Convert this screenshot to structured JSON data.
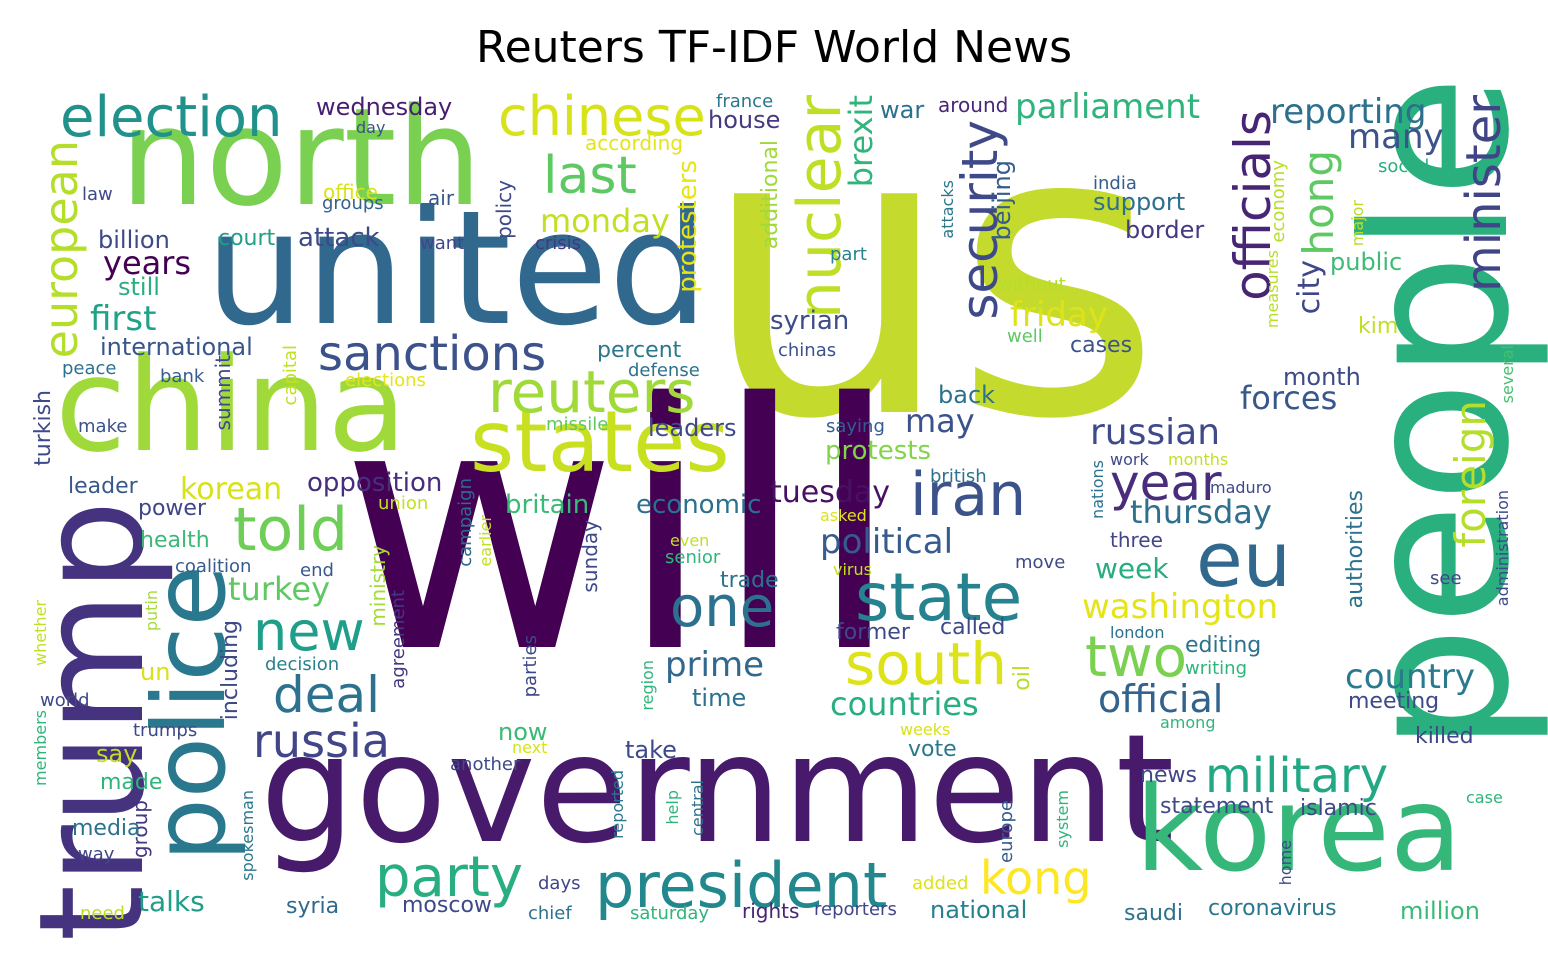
{
  "title": "Reuters TF-IDF World News",
  "palette": [
    "#440154",
    "#482878",
    "#3e4989",
    "#31688e",
    "#26828e",
    "#1f9e89",
    "#35b779",
    "#6ece58",
    "#b5de2b",
    "#fde725"
  ],
  "words": [
    {
      "text": "us",
      "color": "#c4db2d"
    },
    {
      "text": "will",
      "color": "#440154"
    },
    {
      "text": "government",
      "color": "#481a6c"
    },
    {
      "text": "united",
      "color": "#31688e"
    },
    {
      "text": "north",
      "color": "#7ad151"
    },
    {
      "text": "china",
      "color": "#9fda3a"
    },
    {
      "text": "people",
      "color": "#2ab07f"
    },
    {
      "text": "korea",
      "color": "#35b779"
    },
    {
      "text": "trump",
      "color": "#46337f"
    },
    {
      "text": "states",
      "color": "#c8e020"
    },
    {
      "text": "police",
      "color": "#2a788e"
    },
    {
      "text": "president",
      "color": "#23888e"
    },
    {
      "text": "sanctions",
      "color": "#3b528b"
    },
    {
      "text": "reuters",
      "color": "#a0da39"
    },
    {
      "text": "election",
      "color": "#21918c"
    },
    {
      "text": "chinese",
      "color": "#d8e219"
    },
    {
      "text": "last",
      "color": "#5ec962"
    },
    {
      "text": "nuclear",
      "color": "#bddf26"
    },
    {
      "text": "security",
      "color": "#3e4989"
    },
    {
      "text": "officials",
      "color": "#482475"
    },
    {
      "text": "minister",
      "color": "#414487"
    },
    {
      "text": "hong",
      "color": "#5ec962"
    },
    {
      "text": "eu",
      "color": "#31688e"
    },
    {
      "text": "state",
      "color": "#26828e"
    },
    {
      "text": "iran",
      "color": "#3b528b"
    },
    {
      "text": "told",
      "color": "#6ece58"
    },
    {
      "text": "new",
      "color": "#1f9e89"
    },
    {
      "text": "deal",
      "color": "#2c728e"
    },
    {
      "text": "russia",
      "color": "#404688"
    },
    {
      "text": "one",
      "color": "#2c728e"
    },
    {
      "text": "south",
      "color": "#dde318"
    },
    {
      "text": "two",
      "color": "#7ad151"
    },
    {
      "text": "military",
      "color": "#22a884"
    },
    {
      "text": "party",
      "color": "#28ae80"
    },
    {
      "text": "kong",
      "color": "#fde725"
    },
    {
      "text": "european",
      "color": "#b5de2b"
    },
    {
      "text": "foreign",
      "color": "#b5de2b"
    },
    {
      "text": "year",
      "color": "#472d7b"
    },
    {
      "text": "reporting",
      "color": "#2d708e"
    },
    {
      "text": "parliament",
      "color": "#2fb47c"
    },
    {
      "text": "many",
      "color": "#3b528b"
    },
    {
      "text": "official",
      "color": "#33638d"
    },
    {
      "text": "washington",
      "color": "#e5e419"
    },
    {
      "text": "political",
      "color": "#375b8d"
    },
    {
      "text": "russian",
      "color": "#3e4a89"
    },
    {
      "text": "thursday",
      "color": "#2e6f8e"
    },
    {
      "text": "forces",
      "color": "#38588c"
    },
    {
      "text": "brexit",
      "color": "#2fb47c"
    },
    {
      "text": "friday",
      "color": "#dde318"
    },
    {
      "text": "beijing",
      "color": "#365c8d"
    },
    {
      "text": "city",
      "color": "#3f4788"
    },
    {
      "text": "country",
      "color": "#297a8e"
    },
    {
      "text": "monday",
      "color": "#c2df23"
    },
    {
      "text": "years",
      "color": "#440154"
    },
    {
      "text": "first",
      "color": "#1fa287"
    },
    {
      "text": "korean",
      "color": "#d8e219"
    },
    {
      "text": "turkey",
      "color": "#5ec962"
    },
    {
      "text": "prime",
      "color": "#31688e"
    },
    {
      "text": "countries",
      "color": "#29af7f"
    },
    {
      "text": "tuesday",
      "color": "#471063"
    },
    {
      "text": "opposition",
      "color": "#472f7d"
    },
    {
      "text": "protesters",
      "color": "#e7e419"
    },
    {
      "text": "additional",
      "color": "#9fda3a"
    },
    {
      "text": "week",
      "color": "#27ad81"
    },
    {
      "text": "month",
      "color": "#3e4989"
    },
    {
      "text": "public",
      "color": "#3dbc74"
    },
    {
      "text": "support",
      "color": "#2d708e"
    },
    {
      "text": "border",
      "color": "#443a83"
    },
    {
      "text": "syrian",
      "color": "#3e4c8a"
    },
    {
      "text": "may",
      "color": "#3b528b"
    },
    {
      "text": "protests",
      "color": "#84d44b"
    },
    {
      "text": "britain",
      "color": "#3aba76"
    },
    {
      "text": "economic",
      "color": "#2d708e"
    },
    {
      "text": "international",
      "color": "#39568c"
    },
    {
      "text": "court",
      "color": "#1fa088"
    },
    {
      "text": "attack",
      "color": "#3e4989"
    },
    {
      "text": "billion",
      "color": "#3e4989"
    },
    {
      "text": "still",
      "color": "#29af7f"
    },
    {
      "text": "wednesday",
      "color": "#481f70"
    },
    {
      "text": "house",
      "color": "#443983"
    },
    {
      "text": "war",
      "color": "#2c728e"
    },
    {
      "text": "around",
      "color": "#482677"
    },
    {
      "text": "france",
      "color": "#2a788e"
    },
    {
      "text": "according",
      "color": "#e5e419"
    },
    {
      "text": "office",
      "color": "#d8e219"
    },
    {
      "text": "groups",
      "color": "#33638d"
    },
    {
      "text": "air",
      "color": "#39568c"
    },
    {
      "text": "policy",
      "color": "#3e4989"
    },
    {
      "text": "crisis",
      "color": "#453781"
    },
    {
      "text": "want",
      "color": "#404688"
    },
    {
      "text": "part",
      "color": "#26828e"
    },
    {
      "text": "law",
      "color": "#3e4989"
    },
    {
      "text": "day",
      "color": "#3b528b"
    },
    {
      "text": "india",
      "color": "#365c8d"
    },
    {
      "text": "social",
      "color": "#29af7f"
    },
    {
      "text": "major",
      "color": "#b8de29"
    },
    {
      "text": "economy",
      "color": "#b8de29"
    },
    {
      "text": "measures",
      "color": "#b8de29"
    },
    {
      "text": "attacks",
      "color": "#2a788e"
    },
    {
      "text": "without",
      "color": "#b5de2b"
    },
    {
      "text": "well",
      "color": "#5ec962"
    },
    {
      "text": "cases",
      "color": "#3b528b"
    },
    {
      "text": "chinas",
      "color": "#3b528b"
    },
    {
      "text": "kim",
      "color": "#c2df23"
    },
    {
      "text": "several",
      "color": "#46c06f"
    },
    {
      "text": "back",
      "color": "#2c728e"
    },
    {
      "text": "saying",
      "color": "#365c8d"
    },
    {
      "text": "leaders",
      "color": "#3e4989"
    },
    {
      "text": "missile",
      "color": "#5ec962"
    },
    {
      "text": "summit",
      "color": "#3e4989"
    },
    {
      "text": "capital",
      "color": "#c2df23"
    },
    {
      "text": "elections",
      "color": "#e5e419"
    },
    {
      "text": "percent",
      "color": "#2a788e"
    },
    {
      "text": "defense",
      "color": "#2c728e"
    },
    {
      "text": "peace",
      "color": "#2c728e"
    },
    {
      "text": "bank",
      "color": "#365c8d"
    },
    {
      "text": "turkish",
      "color": "#3e4989"
    },
    {
      "text": "make",
      "color": "#3b528b"
    },
    {
      "text": "leader",
      "color": "#38588c"
    },
    {
      "text": "power",
      "color": "#404688"
    },
    {
      "text": "health",
      "color": "#3aba76"
    },
    {
      "text": "coalition",
      "color": "#365c8d"
    },
    {
      "text": "end",
      "color": "#38588c"
    },
    {
      "text": "putin",
      "color": "#a5db36"
    },
    {
      "text": "ministry",
      "color": "#a5db36"
    },
    {
      "text": "agreement",
      "color": "#453781"
    },
    {
      "text": "decision",
      "color": "#26828e"
    },
    {
      "text": "whether",
      "color": "#c2df23"
    },
    {
      "text": "un",
      "color": "#d8e219"
    },
    {
      "text": "world",
      "color": "#3e4989"
    },
    {
      "text": "trumps",
      "color": "#3e4989"
    },
    {
      "text": "members",
      "color": "#2fb47c"
    },
    {
      "text": "say",
      "color": "#c2df23"
    },
    {
      "text": "made",
      "color": "#2fb47c"
    },
    {
      "text": "group",
      "color": "#453781"
    },
    {
      "text": "media",
      "color": "#2c728e"
    },
    {
      "text": "way",
      "color": "#404688"
    },
    {
      "text": "spokesman",
      "color": "#2a788e"
    },
    {
      "text": "talks",
      "color": "#1f9e89"
    },
    {
      "text": "need",
      "color": "#b8de29"
    },
    {
      "text": "including",
      "color": "#3e4989"
    },
    {
      "text": "syria",
      "color": "#31688e"
    },
    {
      "text": "moscow",
      "color": "#3e4989"
    },
    {
      "text": "chief",
      "color": "#2c728e"
    },
    {
      "text": "saturday",
      "color": "#2fb47c"
    },
    {
      "text": "rights",
      "color": "#482475"
    },
    {
      "text": "reporters",
      "color": "#404688"
    },
    {
      "text": "national",
      "color": "#26828e"
    },
    {
      "text": "saudi",
      "color": "#2c728e"
    },
    {
      "text": "coronavirus",
      "color": "#2a788e"
    },
    {
      "text": "million",
      "color": "#3aba76"
    },
    {
      "text": "campaign",
      "color": "#31688e"
    },
    {
      "text": "earlier",
      "color": "#c2df23"
    },
    {
      "text": "union",
      "color": "#c2df23"
    },
    {
      "text": "even",
      "color": "#c2df23"
    },
    {
      "text": "senior",
      "color": "#2fb47c"
    },
    {
      "text": "asked",
      "color": "#dde318"
    },
    {
      "text": "sunday",
      "color": "#3e4989"
    },
    {
      "text": "trade",
      "color": "#2c728e"
    },
    {
      "text": "virus",
      "color": "#c2df23"
    },
    {
      "text": "former",
      "color": "#3e4989"
    },
    {
      "text": "called",
      "color": "#3e4989"
    },
    {
      "text": "time",
      "color": "#2c728e"
    },
    {
      "text": "now",
      "color": "#3aba76"
    },
    {
      "text": "next",
      "color": "#d8e219"
    },
    {
      "text": "take",
      "color": "#3e4989"
    },
    {
      "text": "vote",
      "color": "#2a788e"
    },
    {
      "text": "weeks",
      "color": "#d8e219"
    },
    {
      "text": "another",
      "color": "#3e4989"
    },
    {
      "text": "parties",
      "color": "#3e4989"
    },
    {
      "text": "region",
      "color": "#2fb47c"
    },
    {
      "text": "reported",
      "color": "#2a788e"
    },
    {
      "text": "help",
      "color": "#2fb47c"
    },
    {
      "text": "central",
      "color": "#2c728e"
    },
    {
      "text": "added",
      "color": "#dde318"
    },
    {
      "text": "days",
      "color": "#404688"
    },
    {
      "text": "oil",
      "color": "#b8de29"
    },
    {
      "text": "move",
      "color": "#3e4989"
    },
    {
      "text": "london",
      "color": "#2c728e"
    },
    {
      "text": "writing",
      "color": "#2fb47c"
    },
    {
      "text": "among",
      "color": "#2fb47c"
    },
    {
      "text": "editing",
      "color": "#2c728e"
    },
    {
      "text": "meeting",
      "color": "#3e4989"
    },
    {
      "text": "killed",
      "color": "#404688"
    },
    {
      "text": "news",
      "color": "#404688"
    },
    {
      "text": "statement",
      "color": "#3e4989"
    },
    {
      "text": "islamic",
      "color": "#3e4989"
    },
    {
      "text": "europe",
      "color": "#365c8d"
    },
    {
      "text": "system",
      "color": "#2fb47c"
    },
    {
      "text": "home",
      "color": "#3e4989"
    },
    {
      "text": "case",
      "color": "#2fb47c"
    },
    {
      "text": "authorities",
      "color": "#2c728e"
    },
    {
      "text": "administration",
      "color": "#3e4989"
    },
    {
      "text": "see",
      "color": "#3e4989"
    },
    {
      "text": "nations",
      "color": "#2c728e"
    },
    {
      "text": "work",
      "color": "#3e4989"
    },
    {
      "text": "months",
      "color": "#c2df23"
    },
    {
      "text": "three",
      "color": "#404688"
    },
    {
      "text": "maduro",
      "color": "#3e4989"
    },
    {
      "text": "british",
      "color": "#2c728e"
    }
  ]
}
